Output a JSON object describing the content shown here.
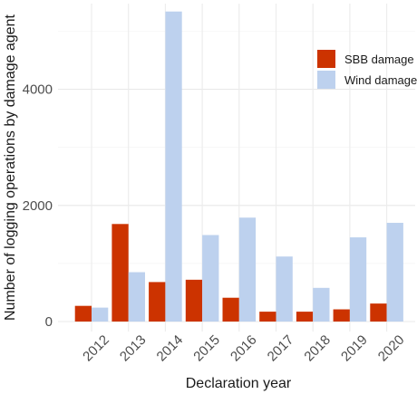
{
  "chart_data": {
    "type": "bar",
    "categories": [
      "2012",
      "2013",
      "2014",
      "2015",
      "2016",
      "2017",
      "2018",
      "2019",
      "2020"
    ],
    "series": [
      {
        "name": "SBB damage",
        "color": "#cc3300",
        "values": [
          270,
          1680,
          680,
          720,
          410,
          170,
          170,
          210,
          310
        ]
      },
      {
        "name": "Wind damage",
        "color": "#bdd1ee",
        "values": [
          240,
          850,
          5340,
          1490,
          1790,
          1120,
          580,
          1450,
          1700
        ]
      }
    ],
    "xlabel": "Declaration year",
    "ylabel": "Number of logging operations by damage agent",
    "yticks": [
      0,
      2000,
      4000
    ],
    "ylim": [
      -50,
      5550
    ],
    "grid": true,
    "legend_position": "top-right"
  }
}
